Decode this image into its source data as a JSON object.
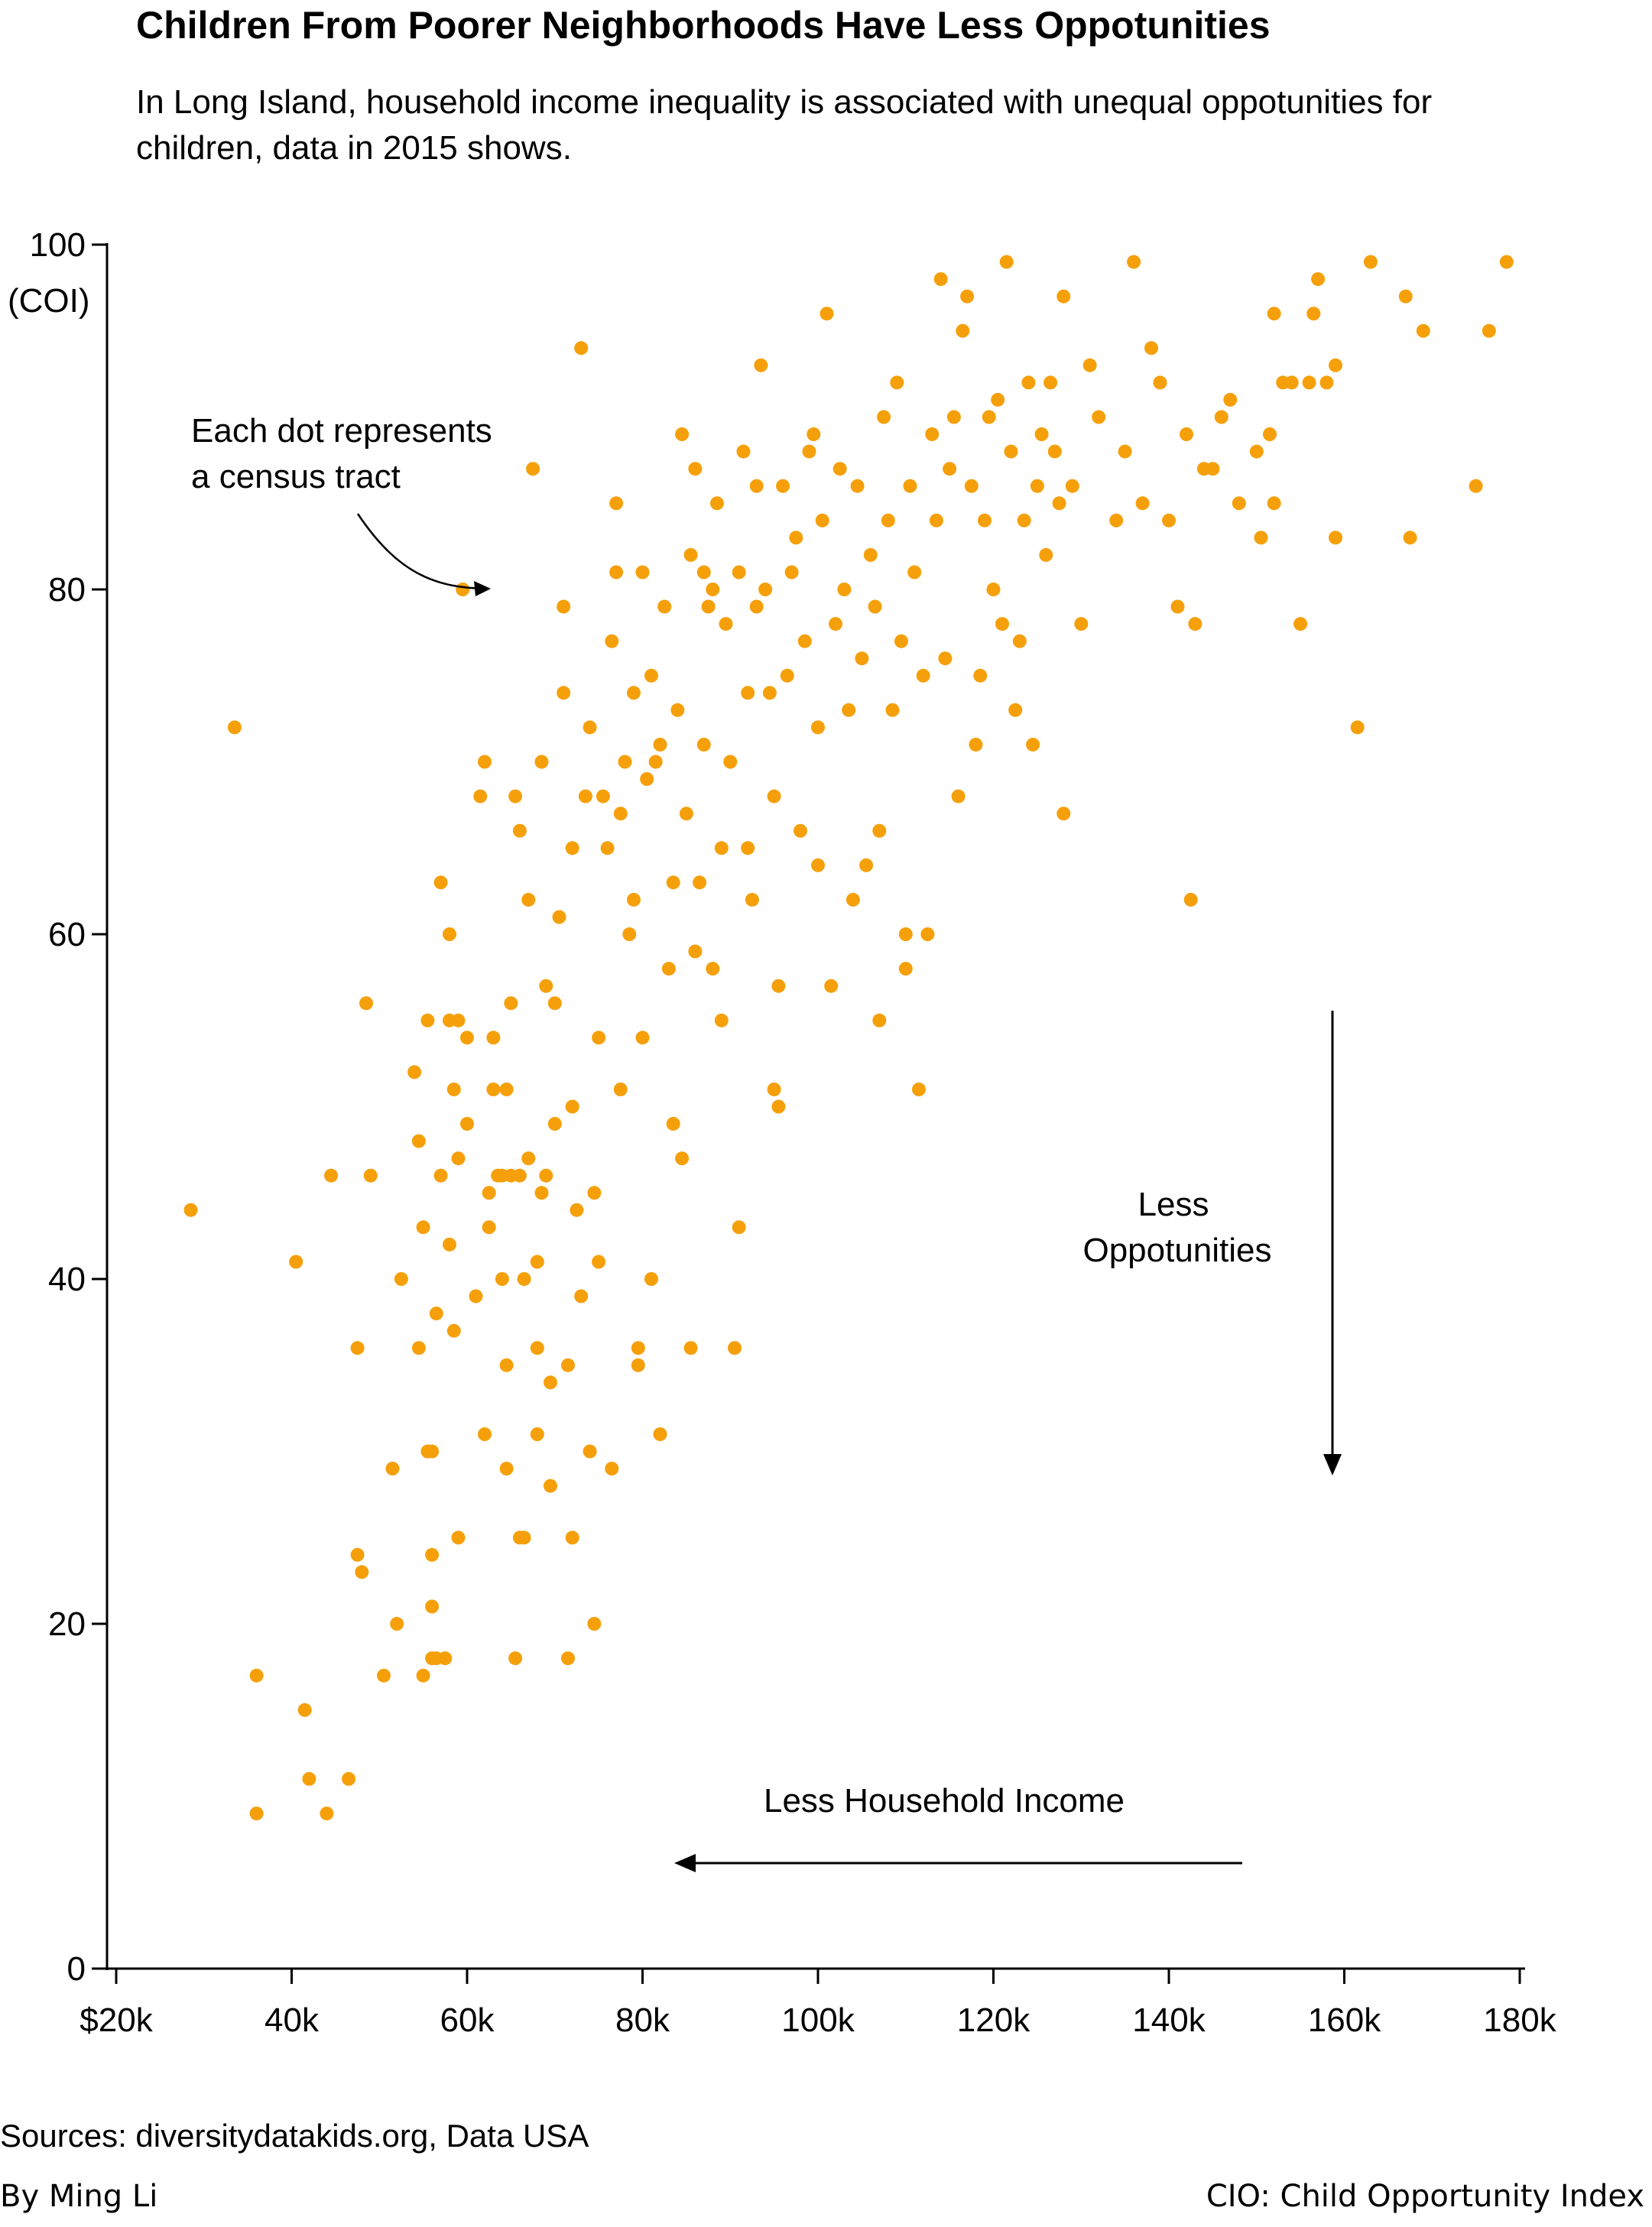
{
  "title": "Children From Poorer Neighborhoods Have Less Oppotunities",
  "subtitle": "In Long Island, household income inequality is associated with unequal oppotunities for children, data in 2015 shows.",
  "source": "Sources: diversitydatakids.org, Data USA",
  "byline": "By Ming Li",
  "cio_note": "CIO: Child Opportunity Index",
  "colors": {
    "dot": "#f5a00a",
    "axis": "#000000"
  },
  "chart_data": {
    "type": "scatter",
    "title": "Children From Poorer Neighborhoods Have Less Oppotunities",
    "ylabel": "(COI)",
    "xlabel": "",
    "xlim": [
      15000,
      180000
    ],
    "ylim": [
      0,
      100
    ],
    "x_ticks": [
      {
        "value": 20000,
        "label": "$20k"
      },
      {
        "value": 40000,
        "label": "40k"
      },
      {
        "value": 60000,
        "label": "60k"
      },
      {
        "value": 80000,
        "label": "80k"
      },
      {
        "value": 100000,
        "label": "100k"
      },
      {
        "value": 120000,
        "label": "120k"
      },
      {
        "value": 140000,
        "label": "140k"
      },
      {
        "value": 160000,
        "label": "160k"
      },
      {
        "value": 180000,
        "label": "180k"
      }
    ],
    "y_ticks": [
      {
        "value": 0,
        "label": "0"
      },
      {
        "value": 20,
        "label": "20"
      },
      {
        "value": 40,
        "label": "40"
      },
      {
        "value": 60,
        "label": "60"
      },
      {
        "value": 80,
        "label": "80"
      },
      {
        "value": 100,
        "label": "100"
      }
    ],
    "annotations": {
      "dot_note": [
        "Each dot represents",
        "a census tract"
      ],
      "less_opportunities": [
        "Less",
        "Oppotunities"
      ],
      "less_income": "Less Household Income"
    },
    "points": [
      [
        28500,
        44
      ],
      [
        33500,
        72
      ],
      [
        36000,
        17
      ],
      [
        36000,
        9
      ],
      [
        40500,
        41
      ],
      [
        41500,
        15
      ],
      [
        42000,
        11
      ],
      [
        44000,
        9
      ],
      [
        44500,
        46
      ],
      [
        46500,
        11
      ],
      [
        47500,
        24
      ],
      [
        47500,
        36
      ],
      [
        48000,
        23
      ],
      [
        48500,
        56
      ],
      [
        49000,
        46
      ],
      [
        50500,
        17
      ],
      [
        51500,
        29
      ],
      [
        52000,
        20
      ],
      [
        52500,
        40
      ],
      [
        54000,
        52
      ],
      [
        54500,
        48
      ],
      [
        54500,
        36
      ],
      [
        55000,
        43
      ],
      [
        55000,
        17
      ],
      [
        55500,
        30
      ],
      [
        55500,
        55
      ],
      [
        56000,
        30
      ],
      [
        56000,
        24
      ],
      [
        56000,
        21
      ],
      [
        56000,
        18
      ],
      [
        56500,
        38
      ],
      [
        56500,
        18
      ],
      [
        57000,
        46
      ],
      [
        57000,
        63
      ],
      [
        57500,
        18
      ],
      [
        58000,
        55
      ],
      [
        58000,
        60
      ],
      [
        58000,
        42
      ],
      [
        58500,
        37
      ],
      [
        58500,
        51
      ],
      [
        59000,
        55
      ],
      [
        59000,
        47
      ],
      [
        59000,
        25
      ],
      [
        59500,
        80
      ],
      [
        60000,
        54
      ],
      [
        60000,
        49
      ],
      [
        61000,
        39
      ],
      [
        61500,
        68
      ],
      [
        62000,
        70
      ],
      [
        62000,
        31
      ],
      [
        62500,
        45
      ],
      [
        62500,
        43
      ],
      [
        63000,
        51
      ],
      [
        63000,
        54
      ],
      [
        63500,
        46
      ],
      [
        64000,
        46
      ],
      [
        64000,
        40
      ],
      [
        64500,
        51
      ],
      [
        64500,
        35
      ],
      [
        64500,
        29
      ],
      [
        65000,
        46
      ],
      [
        65000,
        56
      ],
      [
        65500,
        18
      ],
      [
        65500,
        68
      ],
      [
        66000,
        66
      ],
      [
        66000,
        46
      ],
      [
        66000,
        25
      ],
      [
        66500,
        40
      ],
      [
        66500,
        25
      ],
      [
        67000,
        62
      ],
      [
        67000,
        47
      ],
      [
        67500,
        87
      ],
      [
        68000,
        36
      ],
      [
        68000,
        41
      ],
      [
        68000,
        31
      ],
      [
        68500,
        70
      ],
      [
        68500,
        45
      ],
      [
        69000,
        57
      ],
      [
        69000,
        46
      ],
      [
        69500,
        34
      ],
      [
        69500,
        28
      ],
      [
        70000,
        56
      ],
      [
        70000,
        49
      ],
      [
        70500,
        61
      ],
      [
        71000,
        74
      ],
      [
        71000,
        79
      ],
      [
        71500,
        35
      ],
      [
        71500,
        18
      ],
      [
        72000,
        65
      ],
      [
        72000,
        50
      ],
      [
        72000,
        25
      ],
      [
        72500,
        44
      ],
      [
        73000,
        94
      ],
      [
        73000,
        39
      ],
      [
        73500,
        68
      ],
      [
        74000,
        30
      ],
      [
        74000,
        72
      ],
      [
        74500,
        20
      ],
      [
        74500,
        45
      ],
      [
        75000,
        54
      ],
      [
        75000,
        41
      ],
      [
        75500,
        68
      ],
      [
        76000,
        65
      ],
      [
        76500,
        77
      ],
      [
        76500,
        29
      ],
      [
        77000,
        85
      ],
      [
        77000,
        81
      ],
      [
        77500,
        51
      ],
      [
        77500,
        67
      ],
      [
        78000,
        70
      ],
      [
        78500,
        60
      ],
      [
        79000,
        62
      ],
      [
        79000,
        74
      ],
      [
        79500,
        36
      ],
      [
        79500,
        35
      ],
      [
        80000,
        54
      ],
      [
        80000,
        81
      ],
      [
        80500,
        69
      ],
      [
        81000,
        40
      ],
      [
        81000,
        75
      ],
      [
        81500,
        70
      ],
      [
        82000,
        71
      ],
      [
        82000,
        31
      ],
      [
        82500,
        79
      ],
      [
        83000,
        58
      ],
      [
        83500,
        49
      ],
      [
        83500,
        63
      ],
      [
        84000,
        73
      ],
      [
        84500,
        47
      ],
      [
        84500,
        89
      ],
      [
        85000,
        67
      ],
      [
        85500,
        36
      ],
      [
        85500,
        82
      ],
      [
        86000,
        87
      ],
      [
        86000,
        59
      ],
      [
        86500,
        63
      ],
      [
        87000,
        81
      ],
      [
        87000,
        71
      ],
      [
        87500,
        79
      ],
      [
        88000,
        80
      ],
      [
        88000,
        58
      ],
      [
        88500,
        85
      ],
      [
        89000,
        65
      ],
      [
        89000,
        55
      ],
      [
        89500,
        78
      ],
      [
        90000,
        70
      ],
      [
        90500,
        36
      ],
      [
        91000,
        43
      ],
      [
        91000,
        81
      ],
      [
        91500,
        88
      ],
      [
        92000,
        74
      ],
      [
        92000,
        65
      ],
      [
        92500,
        62
      ],
      [
        93000,
        86
      ],
      [
        93000,
        79
      ],
      [
        93500,
        93
      ],
      [
        94000,
        80
      ],
      [
        94500,
        74
      ],
      [
        95000,
        51
      ],
      [
        95000,
        68
      ],
      [
        95500,
        50
      ],
      [
        95500,
        57
      ],
      [
        96000,
        86
      ],
      [
        96500,
        75
      ],
      [
        97000,
        81
      ],
      [
        97500,
        83
      ],
      [
        98000,
        66
      ],
      [
        98500,
        77
      ],
      [
        99000,
        88
      ],
      [
        99500,
        89
      ],
      [
        100000,
        72
      ],
      [
        100000,
        64
      ],
      [
        100500,
        84
      ],
      [
        101000,
        96
      ],
      [
        101500,
        57
      ],
      [
        102000,
        78
      ],
      [
        102500,
        87
      ],
      [
        103000,
        80
      ],
      [
        103500,
        73
      ],
      [
        104000,
        62
      ],
      [
        104500,
        86
      ],
      [
        105000,
        76
      ],
      [
        105500,
        64
      ],
      [
        106000,
        82
      ],
      [
        106500,
        79
      ],
      [
        107000,
        55
      ],
      [
        107000,
        66
      ],
      [
        107500,
        90
      ],
      [
        108000,
        84
      ],
      [
        108500,
        73
      ],
      [
        109000,
        92
      ],
      [
        109500,
        77
      ],
      [
        110000,
        58
      ],
      [
        110000,
        60
      ],
      [
        110500,
        86
      ],
      [
        111000,
        81
      ],
      [
        111500,
        51
      ],
      [
        112000,
        75
      ],
      [
        112500,
        60
      ],
      [
        113000,
        89
      ],
      [
        113500,
        84
      ],
      [
        114000,
        98
      ],
      [
        114500,
        76
      ],
      [
        115000,
        87
      ],
      [
        115500,
        90
      ],
      [
        116000,
        68
      ],
      [
        116500,
        95
      ],
      [
        117000,
        97
      ],
      [
        117500,
        86
      ],
      [
        118000,
        71
      ],
      [
        118500,
        75
      ],
      [
        119000,
        84
      ],
      [
        119500,
        90
      ],
      [
        120000,
        80
      ],
      [
        120500,
        91
      ],
      [
        121000,
        78
      ],
      [
        121500,
        99
      ],
      [
        122000,
        88
      ],
      [
        122500,
        73
      ],
      [
        123000,
        77
      ],
      [
        123500,
        84
      ],
      [
        124000,
        92
      ],
      [
        124500,
        71
      ],
      [
        125000,
        86
      ],
      [
        125500,
        89
      ],
      [
        126000,
        82
      ],
      [
        126500,
        92
      ],
      [
        127000,
        88
      ],
      [
        127500,
        85
      ],
      [
        128000,
        97
      ],
      [
        128000,
        67
      ],
      [
        129000,
        86
      ],
      [
        130000,
        78
      ],
      [
        131000,
        93
      ],
      [
        132000,
        90
      ],
      [
        134000,
        84
      ],
      [
        135000,
        88
      ],
      [
        136000,
        99
      ],
      [
        137000,
        85
      ],
      [
        138000,
        94
      ],
      [
        139000,
        92
      ],
      [
        140000,
        84
      ],
      [
        141000,
        79
      ],
      [
        142000,
        89
      ],
      [
        143000,
        78
      ],
      [
        142500,
        62
      ],
      [
        144000,
        87
      ],
      [
        145000,
        87
      ],
      [
        146000,
        90
      ],
      [
        147000,
        91
      ],
      [
        148000,
        85
      ],
      [
        150000,
        88
      ],
      [
        150500,
        83
      ],
      [
        151500,
        89
      ],
      [
        152000,
        85
      ],
      [
        152000,
        96
      ],
      [
        153000,
        92
      ],
      [
        154000,
        92
      ],
      [
        155000,
        78
      ],
      [
        156000,
        92
      ],
      [
        156500,
        96
      ],
      [
        157000,
        98
      ],
      [
        158000,
        92
      ],
      [
        159000,
        93
      ],
      [
        159000,
        83
      ],
      [
        161500,
        72
      ],
      [
        163000,
        99
      ],
      [
        167000,
        97
      ],
      [
        167500,
        83
      ],
      [
        169000,
        95
      ],
      [
        175000,
        86
      ],
      [
        176500,
        95
      ],
      [
        178500,
        99
      ]
    ]
  }
}
